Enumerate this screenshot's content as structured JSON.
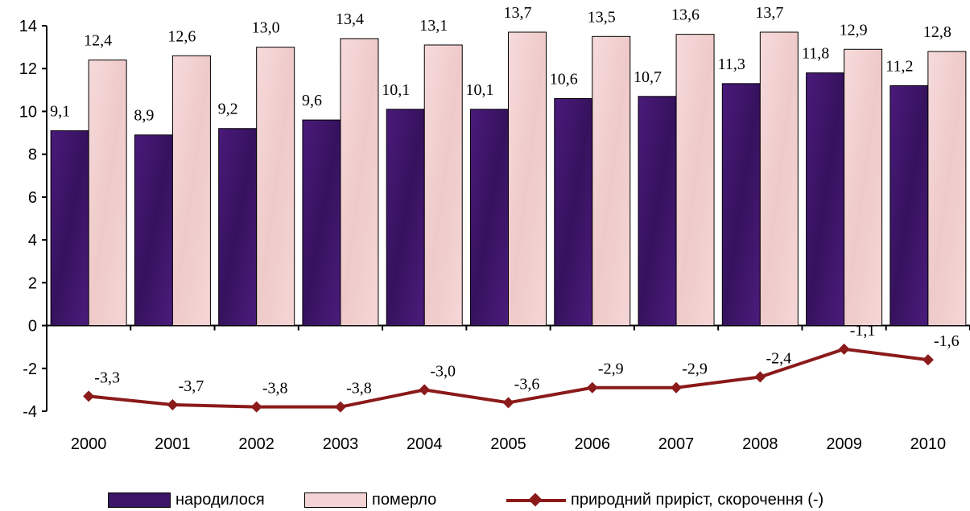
{
  "chart_data": {
    "type": "bar",
    "categories": [
      "2000",
      "2001",
      "2002",
      "2003",
      "2004",
      "2005",
      "2006",
      "2007",
      "2008",
      "2009",
      "2010"
    ],
    "ylim": [
      -4,
      14
    ],
    "yticks": [
      "-4",
      "-2",
      "0",
      "2",
      "4",
      "6",
      "8",
      "10",
      "12",
      "14"
    ],
    "grid": false,
    "legend_position": "bottom",
    "series": [
      {
        "name": "народилося",
        "kind": "bar",
        "color": "#3d1566",
        "values": [
          9.1,
          8.9,
          9.2,
          9.6,
          10.1,
          10.1,
          10.6,
          10.7,
          11.3,
          11.8,
          11.2
        ],
        "labels": [
          "9,1",
          "8,9",
          "9,2",
          "9,6",
          "10,1",
          "10,1",
          "10,6",
          "10,7",
          "11,3",
          "11,8",
          "11,2"
        ]
      },
      {
        "name": "померло",
        "kind": "bar",
        "color": "#f3d3d3",
        "values": [
          12.4,
          12.6,
          13.0,
          13.4,
          13.1,
          13.7,
          13.5,
          13.6,
          13.7,
          12.9,
          12.8
        ],
        "labels": [
          "12,4",
          "12,6",
          "13,0",
          "13,4",
          "13,1",
          "13,7",
          "13,5",
          "13,6",
          "13,7",
          "12,9",
          "12,8"
        ]
      },
      {
        "name": "природний приріст, скорочення (-)",
        "kind": "line",
        "color": "#8b1a1a",
        "values": [
          -3.3,
          -3.7,
          -3.8,
          -3.8,
          -3.0,
          -3.6,
          -2.9,
          -2.9,
          -2.4,
          -1.1,
          -1.6
        ],
        "labels": [
          "-3,3",
          "-3,7",
          "-3,8",
          "-3,8",
          "-3,0",
          "-3,6",
          "-2,9",
          "-2,9",
          "-2,4",
          "-1,1",
          "-1,6"
        ]
      }
    ]
  },
  "legend": {
    "born": "народилося",
    "died": "померло",
    "natural": "природний приріст, скорочення (-)"
  }
}
